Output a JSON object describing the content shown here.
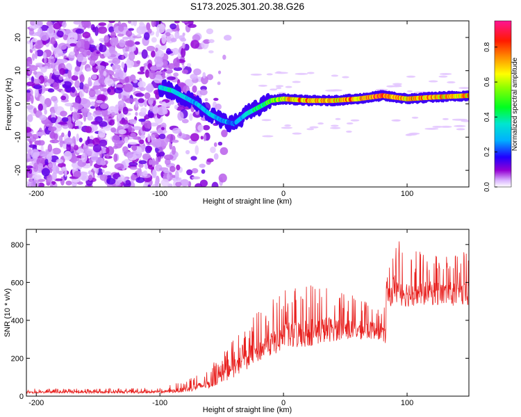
{
  "title": "S173.2025.301.20.38.G26",
  "colors": {
    "snr_line": "#e8201e",
    "axis": "#000000",
    "colormap": [
      "#ffffff",
      "#9400d3",
      "#4b0082",
      "#0000ff",
      "#00bfff",
      "#00ff00",
      "#ffff00",
      "#ff7f00",
      "#ff0000",
      "#ff1493"
    ]
  },
  "chart_data": [
    {
      "type": "heatmap",
      "name": "spectrogram",
      "xlabel": "Height of straight line (km)",
      "ylabel": "Frequency (Hz)",
      "xlim": [
        -208,
        150
      ],
      "ylim": [
        -25,
        25
      ],
      "xticks": [
        -200,
        -100,
        0,
        100
      ],
      "xtick_labels": [
        "-200",
        "-100",
        "0",
        "100"
      ],
      "yticks": [
        -20,
        -10,
        0,
        10,
        20
      ],
      "ytick_labels": [
        "-20",
        "-10",
        "0",
        "10",
        "20"
      ],
      "colorbar": {
        "label": "Normalized spectral amplitude",
        "range": [
          0,
          0.95
        ],
        "ticks": [
          0.0,
          0.2,
          0.4,
          0.6,
          0.8
        ],
        "tick_labels": [
          "0.0",
          "0.2",
          "0.4",
          "0.6",
          "0.8"
        ]
      },
      "ridge": {
        "x": [
          -100,
          -90,
          -80,
          -70,
          -60,
          -50,
          -40,
          -30,
          -20,
          -10,
          0,
          20,
          40,
          60,
          80,
          90,
          100,
          120,
          150
        ],
        "frequency": [
          5,
          4,
          2,
          0,
          -3,
          -5,
          -6,
          -3,
          -1,
          1,
          1.5,
          1,
          1,
          1.5,
          2.5,
          2,
          1.5,
          2,
          2.5
        ],
        "amplitude": [
          0.35,
          0.4,
          0.35,
          0.3,
          0.35,
          0.3,
          0.25,
          0.35,
          0.45,
          0.55,
          0.7,
          0.8,
          0.75,
          0.8,
          0.85,
          0.8,
          0.75,
          0.8,
          0.75
        ]
      },
      "noise_region": {
        "x_range": [
          -208,
          -40
        ],
        "amplitude_range": [
          0.02,
          0.12
        ]
      }
    },
    {
      "type": "line",
      "name": "snr",
      "xlabel": "Height of straight line (km)",
      "ylabel": "SNR (10 * v/v)",
      "xlim": [
        -208,
        150
      ],
      "ylim": [
        0,
        880
      ],
      "xticks": [
        -200,
        -100,
        0,
        100
      ],
      "xtick_labels": [
        "-200",
        "-100",
        "0",
        "100"
      ],
      "yticks": [
        0,
        200,
        400,
        600,
        800
      ],
      "ytick_labels": [
        "0",
        "200",
        "400",
        "600",
        "800"
      ],
      "envelope": {
        "x": [
          -208,
          -150,
          -100,
          -80,
          -60,
          -40,
          -20,
          0,
          20,
          40,
          60,
          80,
          82,
          84,
          90,
          100,
          120,
          150
        ],
        "baseline": [
          15,
          15,
          15,
          20,
          40,
          100,
          180,
          240,
          260,
          290,
          300,
          300,
          230,
          470,
          480,
          470,
          480,
          470
        ],
        "peak": [
          40,
          40,
          45,
          80,
          150,
          300,
          450,
          560,
          600,
          580,
          520,
          500,
          500,
          650,
          860,
          780,
          760,
          760
        ]
      }
    }
  ]
}
